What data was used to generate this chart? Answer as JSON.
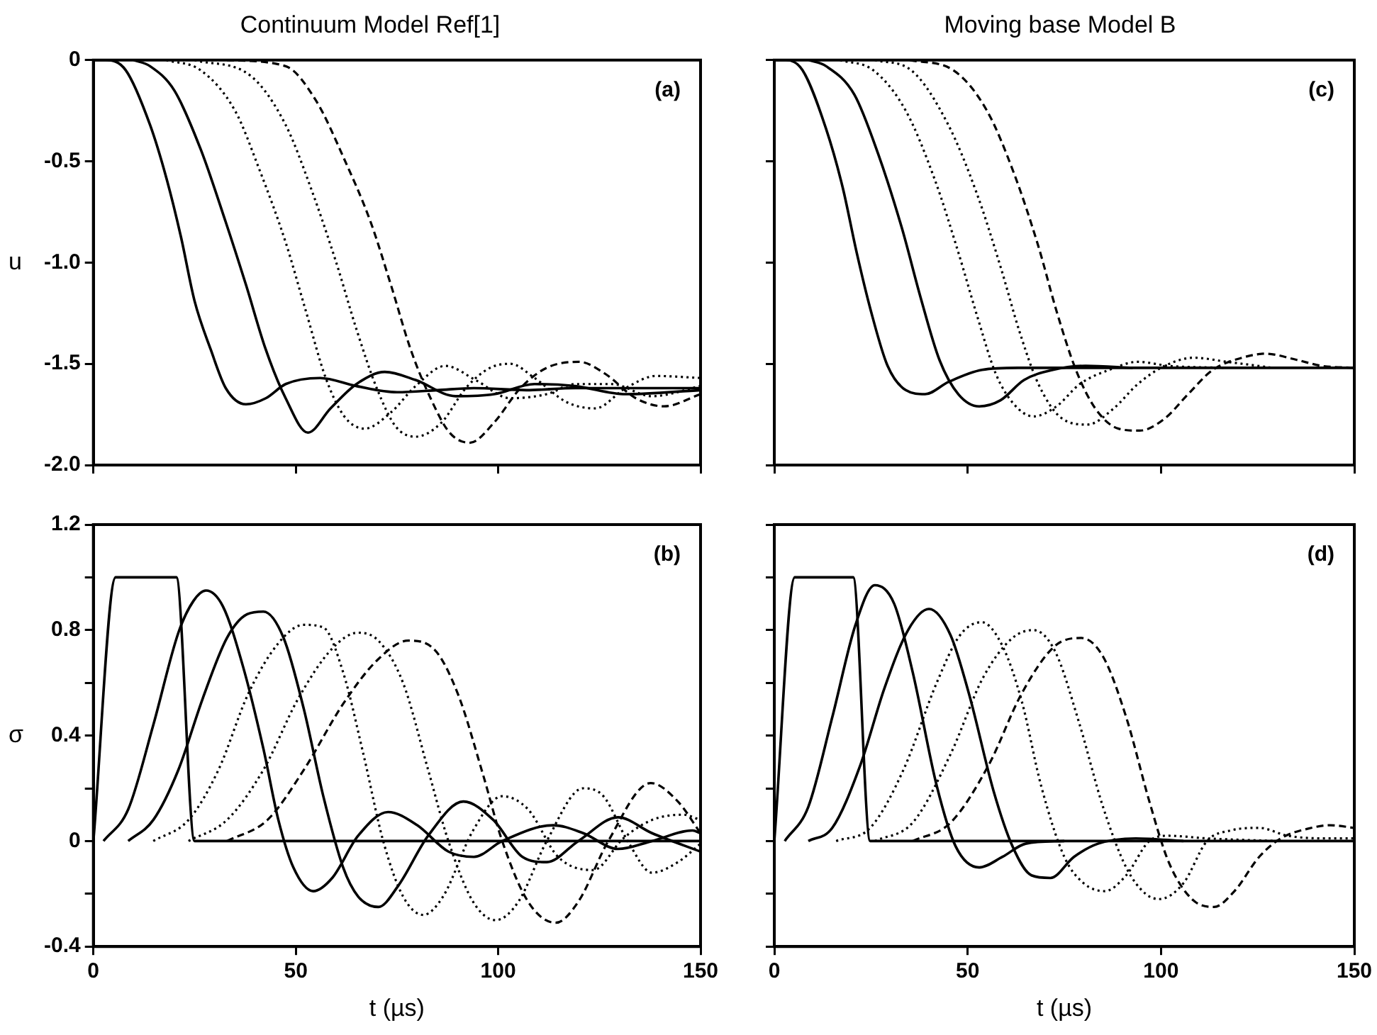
{
  "chart_data": [
    {
      "type": "line",
      "title": "Continuum Model Ref[1]",
      "ylabel": "u",
      "annotations": [
        "(a)"
      ],
      "xlim": [
        0,
        150
      ],
      "xticks": [
        0,
        50,
        100,
        150
      ],
      "ylim": [
        -2,
        0
      ],
      "yticks": [
        0,
        -0.5,
        {
          "value": -1,
          "label": "-1.0"
        },
        -1.5,
        {
          "value": -2,
          "label": "-2.0"
        }
      ],
      "tick_labels": "y",
      "legend": false,
      "grid": false,
      "marker": "none",
      "series": [
        {
          "color": "#000000",
          "line_style": "solid",
          "x": [
            0,
            3,
            8,
            14,
            18,
            21.6,
            25,
            29,
            32.7,
            37.7,
            42.6,
            47.5,
            56,
            65,
            75,
            85,
            94,
            107,
            119,
            150
          ],
          "values": [
            0,
            0,
            -0.05,
            -0.32,
            -0.58,
            -0.87,
            -1.19,
            -1.43,
            -1.62,
            -1.7,
            -1.67,
            -1.6,
            -1.57,
            -1.61,
            -1.64,
            -1.63,
            -1.62,
            -1.63,
            -1.62,
            -1.62
          ]
        },
        {
          "color": "#000000",
          "line_style": "solid",
          "x": [
            10,
            14,
            20,
            26.5,
            32.7,
            37.7,
            42.6,
            47.5,
            53,
            58.6,
            65,
            72,
            79.6,
            89.5,
            99,
            109,
            119,
            131.5,
            150
          ],
          "values": [
            0,
            -0.03,
            -0.15,
            -0.44,
            -0.8,
            -1.11,
            -1.43,
            -1.67,
            -1.84,
            -1.72,
            -1.6,
            -1.54,
            -1.58,
            -1.66,
            -1.65,
            -1.6,
            -1.61,
            -1.65,
            -1.63
          ]
        },
        {
          "color": "#000000",
          "line_style": "dotted",
          "x": [
            18,
            26.5,
            35,
            41,
            47.5,
            52.5,
            57.4,
            62,
            67,
            73.5,
            79.6,
            87,
            94.4,
            103,
            112,
            119,
            128,
            138,
            150
          ],
          "values": [
            0,
            -0.05,
            -0.25,
            -0.54,
            -0.9,
            -1.24,
            -1.57,
            -1.76,
            -1.82,
            -1.74,
            -1.61,
            -1.51,
            -1.58,
            -1.67,
            -1.65,
            -1.6,
            -1.6,
            -1.66,
            -1.61
          ]
        },
        {
          "color": "#000000",
          "line_style": "dotted",
          "x": [
            25,
            39,
            47.5,
            53.7,
            60,
            65,
            70,
            74.7,
            79.6,
            86,
            92,
            98,
            103,
            109,
            117,
            124,
            131.5,
            139,
            150
          ],
          "values": [
            0,
            -0.08,
            -0.32,
            -0.63,
            -1,
            -1.33,
            -1.62,
            -1.81,
            -1.86,
            -1.79,
            -1.62,
            -1.52,
            -1.5,
            -1.57,
            -1.69,
            -1.72,
            -1.62,
            -1.56,
            -1.57
          ]
        },
        {
          "color": "#000000",
          "line_style": "dashed",
          "x": [
            33,
            47.5,
            55,
            62,
            68.5,
            73.5,
            78.4,
            83.3,
            88,
            93,
            99,
            105.5,
            112,
            120,
            126.5,
            134,
            141,
            150
          ],
          "values": [
            0,
            -0.03,
            -0.2,
            -0.49,
            -0.8,
            -1.11,
            -1.43,
            -1.67,
            -1.84,
            -1.89,
            -1.79,
            -1.62,
            -1.52,
            -1.49,
            -1.55,
            -1.67,
            -1.71,
            -1.65
          ]
        }
      ]
    },
    {
      "type": "line",
      "title": "Moving base Model B",
      "annotations": [
        "(c)"
      ],
      "xlim": [
        0,
        150
      ],
      "xticks": [
        0,
        50,
        100,
        150
      ],
      "ylim": [
        -2,
        0
      ],
      "yticks": [
        0,
        -0.5,
        -1,
        -1.5,
        -2
      ],
      "tick_labels": false,
      "legend": false,
      "grid": false,
      "marker": "none",
      "series": [
        {
          "color": "#000000",
          "line_style": "solid",
          "x": [
            0,
            3,
            7.3,
            13.4,
            17.7,
            21.3,
            25,
            29.3,
            34,
            39,
            45,
            53.7,
            63,
            80,
            150
          ],
          "values": [
            0,
            0,
            -0.05,
            -0.34,
            -0.63,
            -0.95,
            -1.24,
            -1.51,
            -1.63,
            -1.65,
            -1.59,
            -1.53,
            -1.52,
            -1.52,
            -1.52
          ]
        },
        {
          "color": "#000000",
          "line_style": "solid",
          "x": [
            9,
            13.4,
            20.7,
            26.8,
            33,
            37.8,
            42.7,
            47.6,
            53,
            58.5,
            64.6,
            72,
            80.5,
            92.7
          ],
          "values": [
            0,
            -0.03,
            -0.17,
            -0.46,
            -0.83,
            -1.17,
            -1.48,
            -1.65,
            -1.71,
            -1.68,
            -1.58,
            -1.53,
            -1.51,
            -1.52
          ]
        },
        {
          "color": "#000000",
          "line_style": "dotted",
          "x": [
            17,
            25.6,
            34,
            41.5,
            47.6,
            52.4,
            57.3,
            62,
            67,
            73,
            79,
            86.6,
            94,
            102,
            117
          ],
          "values": [
            0,
            -0.05,
            -0.25,
            -0.59,
            -0.95,
            -1.26,
            -1.55,
            -1.7,
            -1.76,
            -1.71,
            -1.6,
            -1.53,
            -1.49,
            -1.51,
            -1.52
          ]
        },
        {
          "color": "#000000",
          "line_style": "dotted",
          "x": [
            26,
            35.4,
            45,
            52.4,
            58.5,
            63.4,
            68.3,
            74.4,
            81,
            87.8,
            94,
            101,
            108.5,
            117,
            129
          ],
          "values": [
            0,
            -0.05,
            -0.32,
            -0.66,
            -1.02,
            -1.34,
            -1.6,
            -1.77,
            -1.8,
            -1.72,
            -1.6,
            -1.51,
            -1.47,
            -1.49,
            -1.52
          ]
        },
        {
          "color": "#000000",
          "line_style": "dashed",
          "x": [
            35,
            46.3,
            55,
            62,
            68.3,
            73,
            78,
            83,
            89,
            94.5,
            101,
            107,
            113.4,
            121,
            127,
            135,
            141.5,
            150
          ],
          "values": [
            0,
            -0.05,
            -0.25,
            -0.56,
            -0.92,
            -1.24,
            -1.53,
            -1.72,
            -1.82,
            -1.83,
            -1.77,
            -1.65,
            -1.53,
            -1.47,
            -1.45,
            -1.48,
            -1.51,
            -1.52
          ]
        }
      ]
    },
    {
      "type": "line",
      "ylabel": "σ",
      "xlabel": "t (µs)",
      "annotations": [
        "(b)"
      ],
      "xlim": [
        0,
        150
      ],
      "xticks": [
        0,
        50,
        100,
        150
      ],
      "ylim": [
        -0.4,
        1.2
      ],
      "yticks": [
        1.2,
        {
          "value": 1,
          "label": null
        },
        0.8,
        {
          "value": 0.6,
          "label": null
        },
        0.4,
        {
          "value": 0.2,
          "label": null
        },
        0,
        {
          "value": -0.2,
          "label": null
        },
        -0.4
      ],
      "legend": false,
      "grid": false,
      "marker": "none",
      "series": [
        {
          "color": "#000000",
          "line_style": "solid",
          "x": [
            0,
            5.5,
            20.5,
            25,
            150
          ],
          "values": [
            0,
            1,
            1,
            0,
            0
          ]
        },
        {
          "color": "#000000",
          "line_style": "solid",
          "x": [
            2.5,
            8.6,
            14.8,
            21,
            24.7,
            27.8,
            32,
            37,
            42,
            45.7,
            49.4,
            54.3,
            59,
            65.4,
            72.8,
            80,
            87.7,
            94,
            101,
            113.6,
            121,
            129.6,
            138,
            148,
            150
          ],
          "values": [
            0,
            0.12,
            0.44,
            0.79,
            0.91,
            0.95,
            0.89,
            0.66,
            0.35,
            0.08,
            -0.1,
            -0.19,
            -0.14,
            0.02,
            0.11,
            0.06,
            -0.04,
            -0.06,
            0,
            0.06,
            0.03,
            -0.03,
            0,
            0.04,
            0.03
          ]
        },
        {
          "color": "#000000",
          "line_style": "solid",
          "x": [
            8.6,
            14.8,
            21,
            27,
            33,
            38,
            42,
            47,
            52,
            56.8,
            61.7,
            65.4,
            70.4,
            75.3,
            82.7,
            91.4,
            98.8,
            106,
            112,
            119.8,
            129.6,
            138,
            150
          ],
          "values": [
            0,
            0.08,
            0.27,
            0.54,
            0.77,
            0.86,
            0.87,
            0.77,
            0.5,
            0.17,
            -0.1,
            -0.21,
            -0.25,
            -0.17,
            0.02,
            0.15,
            0.08,
            -0.06,
            -0.08,
            0,
            0.09,
            0.03,
            -0.04
          ]
        },
        {
          "color": "#000000",
          "line_style": "dotted",
          "x": [
            14.8,
            23.5,
            30.9,
            38.3,
            45.7,
            51.9,
            56.8,
            61.7,
            66.7,
            71.6,
            76.5,
            81.5,
            86.4,
            93.8,
            101,
            107.4,
            114.8,
            123.5,
            130.9,
            138,
            145.7,
            150
          ],
          "values": [
            0,
            0.08,
            0.27,
            0.56,
            0.75,
            0.82,
            0.81,
            0.64,
            0.33,
            0,
            -0.21,
            -0.28,
            -0.21,
            0.04,
            0.17,
            0.12,
            -0.06,
            -0.11,
            0.01,
            0.08,
            0.1,
            0.08
          ]
        },
        {
          "color": "#000000",
          "line_style": "dotted",
          "x": [
            23.5,
            33,
            42,
            50.6,
            59,
            65.4,
            70.4,
            76.5,
            82.7,
            87.7,
            93.8,
            99.4,
            105,
            112,
            121,
            126,
            132,
            138,
            144.4,
            150
          ],
          "values": [
            0,
            0.08,
            0.27,
            0.54,
            0.73,
            0.79,
            0.76,
            0.6,
            0.27,
            0,
            -0.23,
            -0.3,
            -0.23,
            0,
            0.2,
            0.17,
            0,
            -0.12,
            -0.08,
            -0.01
          ]
        },
        {
          "color": "#000000",
          "line_style": "dashed",
          "x": [
            33,
            43,
            52,
            61.7,
            70.4,
            77.8,
            84,
            90,
            96.3,
            101,
            107.4,
            114.2,
            119.8,
            127.2,
            137.7,
            144.4,
            150
          ],
          "values": [
            0,
            0.08,
            0.27,
            0.52,
            0.69,
            0.76,
            0.73,
            0.56,
            0.25,
            0,
            -0.23,
            -0.31,
            -0.23,
            0,
            0.22,
            0.15,
            0.03
          ]
        }
      ]
    },
    {
      "type": "line",
      "xlabel": "t (µs)",
      "annotations": [
        "(d)"
      ],
      "xlim": [
        0,
        150
      ],
      "xticks": [
        0,
        50,
        100,
        150
      ],
      "ylim": [
        -0.4,
        1.2
      ],
      "yticks": [
        1.2,
        1,
        0.8,
        0.6,
        0.4,
        0.2,
        0,
        -0.2,
        -0.4
      ],
      "tick_labels": "x",
      "legend": false,
      "grid": false,
      "marker": "none",
      "series": [
        {
          "color": "#000000",
          "line_style": "solid",
          "x": [
            0,
            5.3,
            20.4,
            24.8,
            150
          ],
          "values": [
            0,
            1,
            1,
            0,
            0
          ]
        },
        {
          "color": "#000000",
          "line_style": "solid",
          "x": [
            2.7,
            8.8,
            15,
            21,
            26,
            31,
            35.8,
            42,
            46.9,
            53,
            59,
            65,
            75
          ],
          "values": [
            0,
            0.13,
            0.47,
            0.82,
            0.97,
            0.9,
            0.64,
            0.21,
            -0.02,
            -0.1,
            -0.06,
            -0.01,
            0
          ]
        },
        {
          "color": "#000000",
          "line_style": "solid",
          "x": [
            8.8,
            15,
            22.3,
            28.5,
            34.6,
            40,
            45.6,
            50.5,
            56.7,
            61.6,
            66.5,
            71.4,
            77.5,
            83.7,
            93.5,
            105.8
          ],
          "values": [
            0,
            0.05,
            0.29,
            0.58,
            0.8,
            0.88,
            0.78,
            0.55,
            0.19,
            -0.02,
            -0.13,
            -0.14,
            -0.06,
            -0.01,
            0.01,
            0
          ]
        },
        {
          "color": "#000000",
          "line_style": "dotted",
          "x": [
            16,
            24.8,
            33.4,
            42,
            48,
            53.6,
            59,
            64,
            69,
            75,
            80,
            85.5,
            91,
            97,
            102,
            112,
            130
          ],
          "values": [
            0,
            0.05,
            0.27,
            0.6,
            0.78,
            0.83,
            0.74,
            0.53,
            0.21,
            -0.06,
            -0.16,
            -0.19,
            -0.13,
            0,
            0.02,
            0.01,
            0
          ]
        },
        {
          "color": "#000000",
          "line_style": "dotted",
          "x": [
            26,
            35.8,
            45.6,
            54,
            61.6,
            67,
            72.6,
            78.8,
            85,
            91,
            96,
            99.6,
            105.8,
            111.9,
            118,
            125.4,
            132.8,
            142.6,
            150
          ],
          "values": [
            0,
            0.07,
            0.33,
            0.62,
            0.77,
            0.8,
            0.72,
            0.45,
            0.13,
            -0.1,
            -0.2,
            -0.22,
            -0.16,
            0,
            0.04,
            0.05,
            0.02,
            0.01,
            0.01
          ]
        },
        {
          "color": "#000000",
          "line_style": "dashed",
          "x": [
            35.8,
            45.6,
            55.5,
            64,
            72.6,
            79.4,
            85,
            91,
            97,
            102,
            108,
            113.7,
            119,
            125.4,
            131,
            138.9,
            143.8,
            150
          ],
          "values": [
            0,
            0.07,
            0.29,
            0.56,
            0.74,
            0.77,
            0.7,
            0.47,
            0.15,
            -0.08,
            -0.22,
            -0.25,
            -0.19,
            -0.06,
            0.01,
            0.05,
            0.06,
            0.05
          ]
        }
      ]
    }
  ]
}
